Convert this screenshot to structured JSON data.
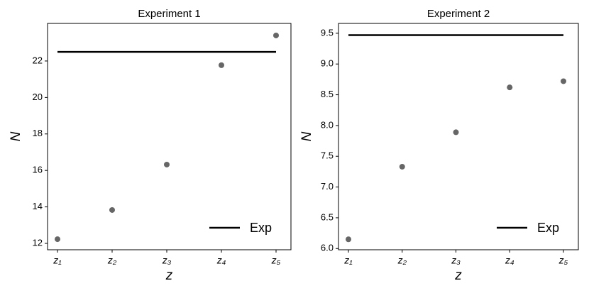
{
  "chart_data": [
    {
      "type": "scatter",
      "title": "Experiment 1",
      "xlabel": "z",
      "ylabel": "N",
      "categories": [
        "z₁",
        "z₂",
        "z₃",
        "z₄",
        "z₅"
      ],
      "values": [
        12.23,
        13.83,
        16.32,
        21.77,
        23.4
      ],
      "color": "#666666",
      "reference": {
        "name": "Exp",
        "value": 22.5,
        "color": "#000000"
      },
      "ylim": [
        11.65,
        24.06
      ],
      "yticks": [
        12,
        14,
        16,
        18,
        20,
        22
      ],
      "legend": "lower right"
    },
    {
      "type": "scatter",
      "title": "Experiment 2",
      "xlabel": "z",
      "ylabel": "N",
      "categories": [
        "z₁",
        "z₂",
        "z₃",
        "z₄",
        "z₅"
      ],
      "values": [
        6.15,
        7.33,
        7.89,
        8.62,
        8.72
      ],
      "color": "#666666",
      "reference": {
        "name": "Exp",
        "value": 9.47,
        "color": "#000000"
      },
      "ylim": [
        5.98,
        9.66
      ],
      "yticks": [
        {
          "value": 6,
          "label": "6.0"
        },
        6.5,
        {
          "value": 7,
          "label": "7.0"
        },
        7.5,
        {
          "value": 8,
          "label": "8.0"
        },
        8.5,
        {
          "value": 9,
          "label": "9.0"
        },
        9.5
      ],
      "legend": "lower right"
    }
  ]
}
